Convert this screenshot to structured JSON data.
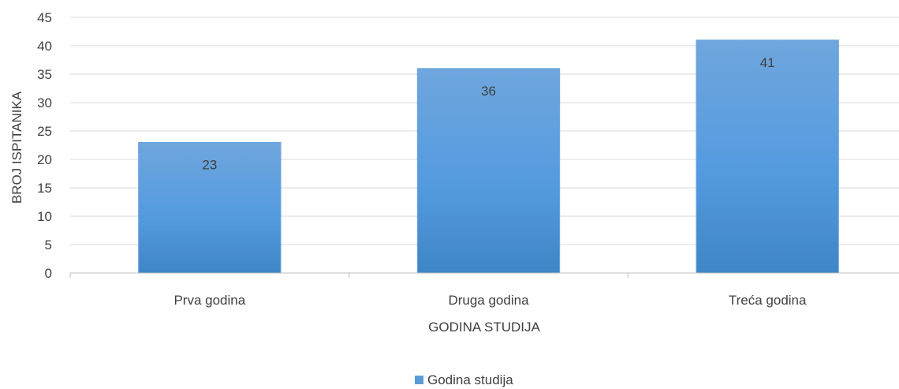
{
  "chart_data": {
    "type": "bar",
    "categories": [
      "Prva godina",
      "Druga godina",
      "Treća godina"
    ],
    "series": [
      {
        "name": "Godina studija",
        "values": [
          23,
          36,
          41
        ],
        "color": "#5B9BD5"
      }
    ],
    "xlabel": "GODINA STUDIJA",
    "ylabel": "BROJ ISPITANIKA",
    "ylim": [
      0,
      45
    ],
    "yticks": [
      0,
      5,
      10,
      15,
      20,
      25,
      30,
      35,
      40,
      45
    ],
    "grid": true,
    "legend_position": "bottom",
    "data_labels": true
  }
}
